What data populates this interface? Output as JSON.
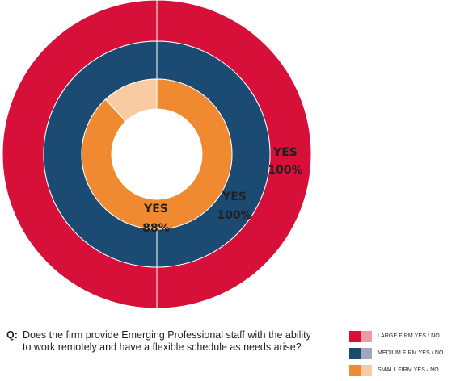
{
  "chart_data": {
    "type": "pie",
    "variant": "nested-donut",
    "series": [
      {
        "name": "LARGE FIRM YES / NO",
        "yes_percent": 100,
        "no_percent": 0,
        "label": "YES",
        "value_label": "100%",
        "yes_color": "#d7103a",
        "no_color": "#ec9aa5"
      },
      {
        "name": "MEDIUM FIRM YES / NO",
        "yes_percent": 100,
        "no_percent": 0,
        "label": "YES",
        "value_label": "100%",
        "yes_color": "#1b4a73",
        "no_color": "#a4a6bf"
      },
      {
        "name": "SMALL FIRM YES / NO",
        "yes_percent": 88,
        "no_percent": 12,
        "label": "YES",
        "value_label": "88%",
        "yes_color": "#f08a30",
        "no_color": "#f8cba3"
      }
    ],
    "legend_position": "bottom-right"
  },
  "question": {
    "prefix": "Q:",
    "text": "Does the firm provide Emerging Professional staff with the ability to work remotely and have a flexible schedule as needs arise?"
  }
}
